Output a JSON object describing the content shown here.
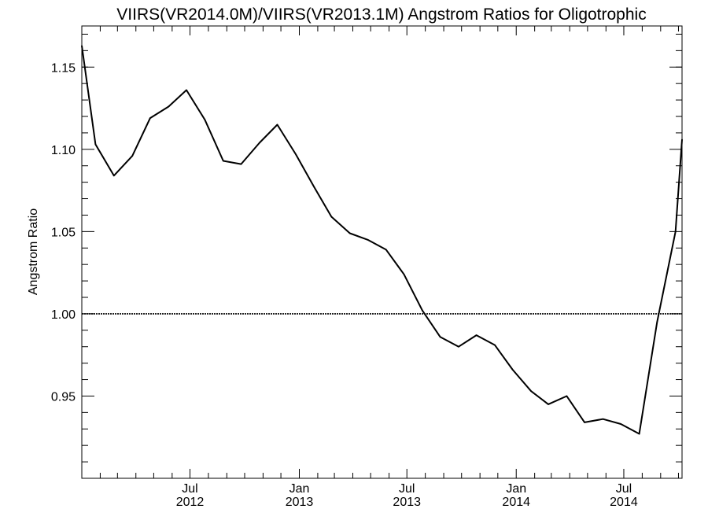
{
  "chart_data": {
    "type": "line",
    "title": "VIIRS(VR2014.0M)/VIIRS(VR2013.1M)  Angstrom Ratios for Oligotrophic",
    "ylabel": "Angstrom Ratio",
    "xlabel": "",
    "xlim": [
      "2012-01-01",
      "2014-10-07"
    ],
    "ylim": [
      0.9,
      1.175
    ],
    "y_ticks": [
      {
        "value": 0.95,
        "label": "0.95"
      },
      {
        "value": 1.0,
        "label": "1.00"
      },
      {
        "value": 1.05,
        "label": "1.05"
      },
      {
        "value": 1.1,
        "label": "1.10"
      },
      {
        "value": 1.15,
        "label": "1.15"
      }
    ],
    "x_ticks": [
      {
        "date": "2012-07-01",
        "month": "Jul",
        "year": "2012"
      },
      {
        "date": "2013-01-01",
        "month": "Jan",
        "year": "2013"
      },
      {
        "date": "2013-07-01",
        "month": "Jul",
        "year": "2013"
      },
      {
        "date": "2014-01-01",
        "month": "Jan",
        "year": "2014"
      },
      {
        "date": "2014-07-01",
        "month": "Jul",
        "year": "2014"
      }
    ],
    "reference_line": {
      "y": 1.0,
      "style": "dotted"
    },
    "series": [
      {
        "x": [
          "2012-01-01",
          "2012-01-24",
          "2012-02-24",
          "2012-03-26",
          "2012-04-25",
          "2012-05-26",
          "2012-06-25",
          "2012-07-26",
          "2012-08-26",
          "2012-09-25",
          "2012-10-26",
          "2012-11-25",
          "2012-12-26",
          "2013-01-26",
          "2013-02-24",
          "2013-03-27",
          "2013-04-26",
          "2013-05-27",
          "2013-06-26",
          "2013-07-27",
          "2013-08-26",
          "2013-09-26",
          "2013-10-26",
          "2013-11-26",
          "2013-12-26",
          "2014-01-26",
          "2014-02-24",
          "2014-03-27",
          "2014-04-26",
          "2014-05-27",
          "2014-06-26",
          "2014-07-27",
          "2014-08-26",
          "2014-09-26",
          "2014-10-07"
        ],
        "values": [
          1.163,
          1.103,
          1.084,
          1.096,
          1.119,
          1.126,
          1.136,
          1.118,
          1.093,
          1.091,
          1.104,
          1.115,
          1.097,
          1.077,
          1.059,
          1.049,
          1.045,
          1.039,
          1.024,
          1.002,
          0.986,
          0.98,
          0.987,
          0.981,
          0.966,
          0.953,
          0.945,
          0.95,
          0.934,
          0.936,
          0.933,
          0.927,
          0.995,
          1.05,
          1.106
        ]
      }
    ]
  }
}
